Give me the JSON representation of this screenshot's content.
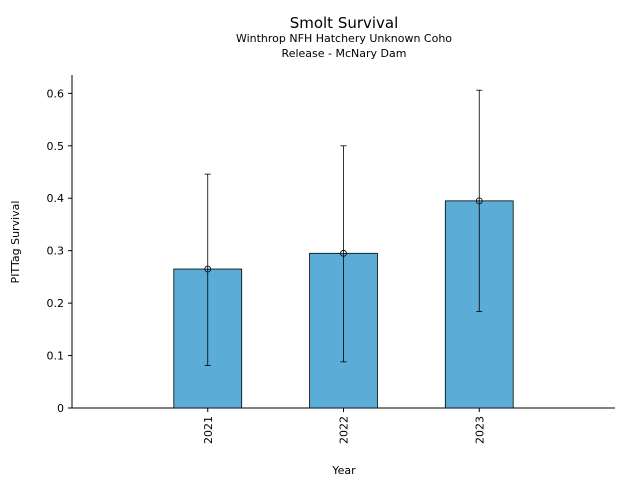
{
  "chart_data": {
    "type": "bar",
    "title": "Smolt Survival",
    "subtitle_line1": "Winthrop NFH Hatchery Unknown Coho",
    "subtitle_line2": "Release - McNary Dam",
    "xlabel": "Year",
    "ylabel": "PITTag Survival",
    "categories": [
      "2021",
      "2022",
      "2023"
    ],
    "values": [
      0.265,
      0.295,
      0.395
    ],
    "error_low": [
      0.081,
      0.088,
      0.184
    ],
    "error_high": [
      0.446,
      0.5,
      0.606
    ],
    "ylim": [
      0,
      0.635
    ],
    "yticks": [
      0,
      0.1,
      0.2,
      0.3,
      0.4,
      0.5,
      0.6
    ],
    "ytick_labels": [
      "0",
      "0.1",
      "0.2",
      "0.3",
      "0.4",
      "0.5",
      "0.6"
    ],
    "grid": false,
    "bar_color": "#5bacd6",
    "edge_color": "#000000"
  }
}
